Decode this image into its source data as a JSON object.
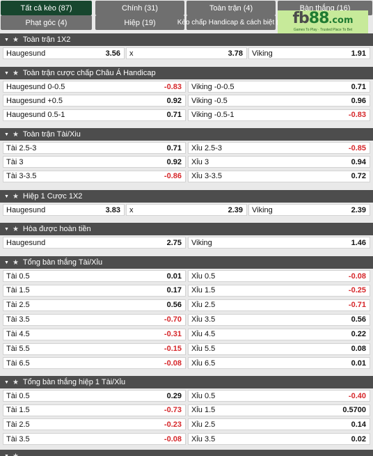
{
  "tabs": [
    {
      "label": "Tất cả kèo (87)",
      "active": true
    },
    {
      "label": "Chính (31)",
      "active": false
    },
    {
      "label": "Toàn trận (4)",
      "active": false
    },
    {
      "label": "Bàn thắng (16)",
      "active": false
    },
    {
      "label": "Phạt góc (4)",
      "active": false
    },
    {
      "label": "Hiệp (19)",
      "active": false
    },
    {
      "label": "Kèo chấp Handicap & cách biệt (3)",
      "active": false
    }
  ],
  "logo": {
    "brand_a": "fb",
    "brand_b": "88",
    "brand_c": ".com",
    "slogan": "Games To Play · Trusted Place To Bet"
  },
  "sections": [
    {
      "title": "Toàn trận 1X2",
      "layout": "three",
      "rows": [
        [
          {
            "label": "Haugesund",
            "value": "3.56"
          },
          {
            "label": "x",
            "value": "3.78"
          },
          {
            "label": "Viking",
            "value": "1.91"
          }
        ]
      ]
    },
    {
      "title": "Toàn trận cược chấp Châu Á Handicap",
      "layout": "two",
      "rows": [
        [
          {
            "label": "Haugesund 0-0.5",
            "value": "-0.83"
          },
          {
            "label": "Viking -0-0.5",
            "value": "0.71"
          }
        ],
        [
          {
            "label": "Haugesund +0.5",
            "value": "0.92"
          },
          {
            "label": "Viking -0.5",
            "value": "0.96"
          }
        ],
        [
          {
            "label": "Haugesund 0.5-1",
            "value": "0.71"
          },
          {
            "label": "Viking -0.5-1",
            "value": "-0.83"
          }
        ]
      ]
    },
    {
      "title": "Toàn trận Tài/Xiu",
      "layout": "two",
      "rows": [
        [
          {
            "label": "Tài 2.5-3",
            "value": "0.71"
          },
          {
            "label": "Xỉu 2.5-3",
            "value": "-0.85"
          }
        ],
        [
          {
            "label": "Tài 3",
            "value": "0.92"
          },
          {
            "label": "Xỉu 3",
            "value": "0.94"
          }
        ],
        [
          {
            "label": "Tài 3-3.5",
            "value": "-0.86"
          },
          {
            "label": "Xỉu 3-3.5",
            "value": "0.72"
          }
        ]
      ]
    },
    {
      "title": "Hiệp 1 Cược 1X2",
      "layout": "three",
      "rows": [
        [
          {
            "label": "Haugesund",
            "value": "3.83"
          },
          {
            "label": "x",
            "value": "2.39"
          },
          {
            "label": "Viking",
            "value": "2.39"
          }
        ]
      ]
    },
    {
      "title": "Hòa được hoàn tiền",
      "layout": "two",
      "rows": [
        [
          {
            "label": "Haugesund",
            "value": "2.75"
          },
          {
            "label": "Viking",
            "value": "1.46"
          }
        ]
      ]
    },
    {
      "title": "Tổng bàn thắng Tài/Xỉu",
      "layout": "two",
      "rows": [
        [
          {
            "label": "Tài 0.5",
            "value": "0.01"
          },
          {
            "label": "Xỉu 0.5",
            "value": "-0.08"
          }
        ],
        [
          {
            "label": "Tài 1.5",
            "value": "0.17"
          },
          {
            "label": "Xỉu 1.5",
            "value": "-0.25"
          }
        ],
        [
          {
            "label": "Tài 2.5",
            "value": "0.56"
          },
          {
            "label": "Xỉu 2.5",
            "value": "-0.71"
          }
        ],
        [
          {
            "label": "Tài 3.5",
            "value": "-0.70"
          },
          {
            "label": "Xỉu 3.5",
            "value": "0.56"
          }
        ],
        [
          {
            "label": "Tài 4.5",
            "value": "-0.31"
          },
          {
            "label": "Xỉu 4.5",
            "value": "0.22"
          }
        ],
        [
          {
            "label": "Tài 5.5",
            "value": "-0.15"
          },
          {
            "label": "Xỉu 5.5",
            "value": "0.08"
          }
        ],
        [
          {
            "label": "Tài 6.5",
            "value": "-0.08"
          },
          {
            "label": "Xỉu 6.5",
            "value": "0.01"
          }
        ]
      ]
    },
    {
      "title": "Tổng bàn thắng hiệp 1 Tài/Xỉu",
      "layout": "two",
      "rows": [
        [
          {
            "label": "Tài 0.5",
            "value": "0.29"
          },
          {
            "label": "Xỉu 0.5",
            "value": "-0.40"
          }
        ],
        [
          {
            "label": "Tài 1.5",
            "value": "-0.73"
          },
          {
            "label": "Xỉu 1.5",
            "value": "0.5700"
          }
        ],
        [
          {
            "label": "Tài 2.5",
            "value": "-0.23"
          },
          {
            "label": "Xỉu 2.5",
            "value": "0.14"
          }
        ],
        [
          {
            "label": "Tài 3.5",
            "value": "-0.08"
          },
          {
            "label": "Xỉu 3.5",
            "value": "0.02"
          }
        ]
      ]
    },
    {
      "title": "",
      "layout": "two",
      "rows": []
    }
  ],
  "colors": {
    "active_tab": "#17462e",
    "tab": "#6f6f6f",
    "section_header": "#4d4d4d",
    "negative": "#d6272a"
  },
  "icons": {
    "collapse": "caret-down-icon",
    "favorite": "star-icon"
  }
}
